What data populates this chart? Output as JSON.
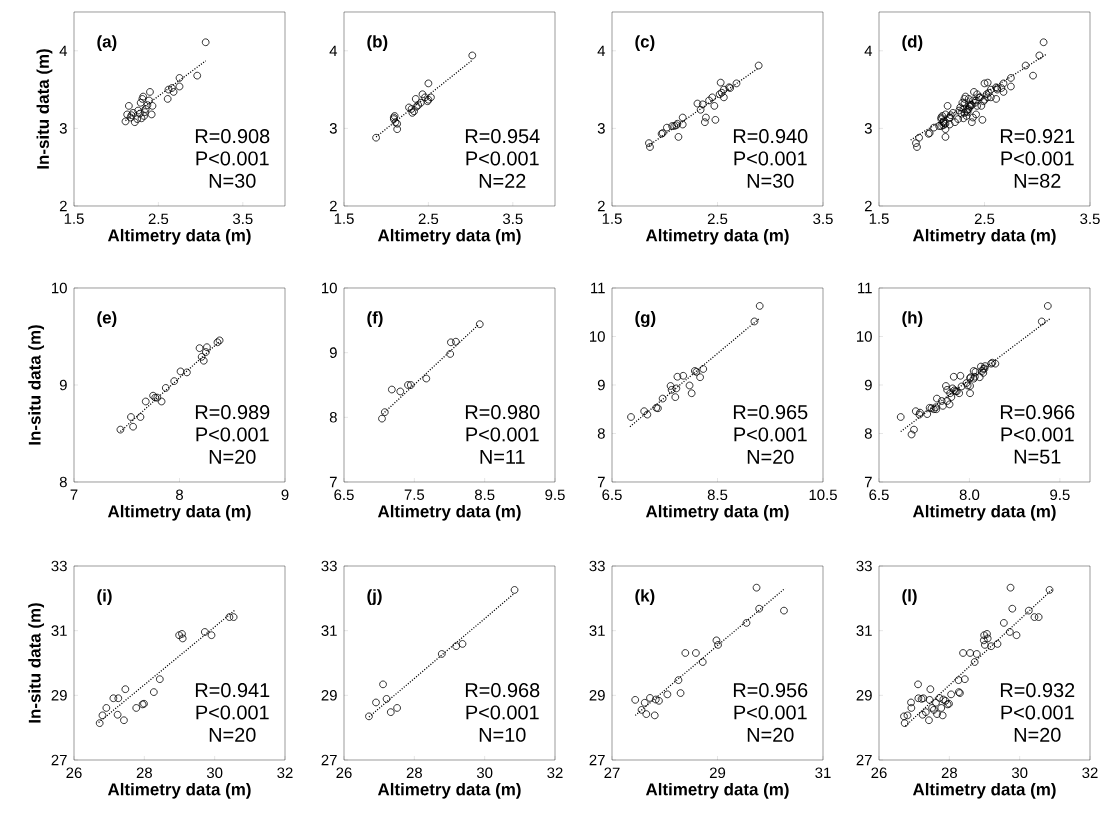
{
  "chart_data": [
    {
      "type": "scatter",
      "xlabel": "Altimetry data (m)",
      "ylabel": "In-situ data (m)",
      "xlim": [
        1.5,
        4.0
      ],
      "ylim": [
        2,
        4.5
      ],
      "xticks": [
        1.5,
        2.5,
        3.5
      ],
      "yticks": [
        2,
        3,
        4
      ],
      "annotations": [
        "(a)",
        "R=0.908",
        "P<0.001",
        "N=30"
      ],
      "series": [
        {
          "marker": "circle",
          "color": "#000000",
          "x": [
            3.06,
            2.96,
            2.75,
            2.75,
            2.68,
            2.66,
            2.62,
            2.61,
            2.4,
            2.32,
            2.39,
            2.43,
            2.29,
            2.35,
            2.42,
            2.28,
            2.15,
            2.13,
            2.18,
            2.11,
            2.22,
            2.3,
            2.26,
            2.33,
            2.2,
            2.37,
            2.25,
            2.31,
            2.17,
            2.34
          ],
          "values": [
            4.11,
            3.68,
            3.65,
            3.54,
            3.47,
            3.52,
            3.5,
            3.38,
            3.47,
            3.41,
            3.36,
            3.29,
            3.33,
            3.25,
            3.18,
            3.19,
            3.29,
            3.18,
            3.17,
            3.09,
            3.08,
            3.13,
            3.23,
            3.16,
            3.2,
            3.3,
            3.12,
            3.38,
            3.14,
            3.21
          ]
        },
        {
          "type": "line",
          "marker": "none",
          "line_style": "dotted",
          "color": "#000000",
          "x": [
            2.11,
            3.06
          ],
          "values": [
            3.1,
            3.87
          ]
        }
      ]
    },
    {
      "type": "scatter",
      "xlabel": "Altimetry data (m)",
      "xlim": [
        1.5,
        4.0
      ],
      "ylim": [
        2,
        4.5
      ],
      "xticks": [
        1.5,
        2.5,
        3.5
      ],
      "yticks": [
        2,
        3,
        4
      ],
      "annotations": [
        "(b)",
        "R=0.954",
        "P<0.001",
        "N=22"
      ],
      "series": [
        {
          "marker": "circle",
          "color": "#000000",
          "x": [
            1.88,
            3.02,
            2.5,
            2.53,
            2.43,
            2.35,
            2.49,
            2.38,
            2.27,
            2.33,
            2.31,
            2.1,
            2.11,
            2.13,
            2.13,
            2.09,
            2.46,
            2.36,
            2.3,
            2.41,
            2.5,
            2.09
          ],
          "values": [
            2.88,
            3.94,
            3.58,
            3.4,
            3.44,
            3.38,
            3.35,
            3.3,
            3.27,
            3.22,
            3.2,
            3.16,
            3.08,
            3.06,
            2.99,
            3.14,
            3.4,
            3.28,
            3.25,
            3.33,
            3.37,
            3.12
          ]
        },
        {
          "type": "line",
          "marker": "none",
          "line_style": "dotted",
          "color": "#000000",
          "x": [
            1.88,
            3.02
          ],
          "values": [
            2.89,
            3.88
          ]
        }
      ]
    },
    {
      "type": "scatter",
      "xlabel": "Altimetry data (m)",
      "xlim": [
        1.5,
        3.5
      ],
      "ylim": [
        2,
        4.5
      ],
      "xticks": [
        1.5,
        2.5,
        3.5
      ],
      "yticks": [
        2,
        3,
        4
      ],
      "annotations": [
        "(c)",
        "R=0.940",
        "P<0.001",
        "N=30"
      ],
      "series": [
        {
          "marker": "circle",
          "color": "#000000",
          "x": [
            1.85,
            1.86,
            1.97,
            2.02,
            2.07,
            2.11,
            2.09,
            2.13,
            2.17,
            2.17,
            2.31,
            2.36,
            2.34,
            2.38,
            2.39,
            2.45,
            2.47,
            2.48,
            2.53,
            2.54,
            2.56,
            2.56,
            2.61,
            2.68,
            2.89,
            2.12,
            2.42,
            2.52,
            2.62,
            1.98
          ],
          "values": [
            2.81,
            2.76,
            2.93,
            3.01,
            3.03,
            3.04,
            3.03,
            2.89,
            3.05,
            3.14,
            3.32,
            3.31,
            3.24,
            3.08,
            3.14,
            3.4,
            3.29,
            3.11,
            3.59,
            3.46,
            3.4,
            3.5,
            3.53,
            3.58,
            3.81,
            3.06,
            3.36,
            3.44,
            3.52,
            2.94
          ]
        },
        {
          "type": "line",
          "marker": "none",
          "line_style": "dotted",
          "color": "#000000",
          "x": [
            1.85,
            2.89
          ],
          "values": [
            2.78,
            3.78
          ]
        }
      ]
    },
    {
      "type": "scatter",
      "xlabel": "Altimetry data (m)",
      "xlim": [
        1.5,
        3.5
      ],
      "ylim": [
        2,
        4.5
      ],
      "xticks": [
        1.5,
        2.5,
        3.5
      ],
      "yticks": [
        2,
        3,
        4
      ],
      "annotations": [
        "(d)",
        "R=0.921",
        "P<0.001",
        "N=82"
      ],
      "series": [
        {
          "marker": "circle",
          "color": "#000000",
          "x": [
            3.06,
            2.96,
            2.75,
            2.75,
            2.68,
            2.66,
            2.62,
            2.61,
            2.4,
            2.32,
            2.39,
            2.43,
            2.29,
            2.35,
            2.42,
            2.28,
            2.15,
            2.13,
            2.18,
            2.11,
            2.22,
            2.3,
            2.26,
            2.33,
            2.2,
            2.37,
            2.25,
            2.31,
            2.17,
            2.34,
            1.88,
            3.02,
            2.5,
            2.53,
            2.43,
            2.35,
            2.49,
            2.38,
            2.27,
            2.33,
            2.31,
            2.1,
            2.11,
            2.13,
            2.13,
            2.09,
            2.46,
            2.36,
            2.3,
            2.41,
            2.5,
            2.09,
            1.85,
            1.86,
            1.97,
            2.02,
            2.07,
            2.11,
            2.09,
            2.13,
            2.17,
            2.17,
            2.31,
            2.36,
            2.34,
            2.38,
            2.39,
            2.45,
            2.47,
            2.48,
            2.53,
            2.54,
            2.56,
            2.56,
            2.61,
            2.68,
            2.89,
            2.12,
            2.42,
            2.52,
            2.62,
            1.98
          ],
          "values": [
            4.11,
            3.68,
            3.65,
            3.54,
            3.47,
            3.52,
            3.5,
            3.38,
            3.47,
            3.41,
            3.36,
            3.29,
            3.33,
            3.25,
            3.18,
            3.19,
            3.29,
            3.18,
            3.17,
            3.09,
            3.08,
            3.13,
            3.23,
            3.16,
            3.2,
            3.3,
            3.12,
            3.38,
            3.14,
            3.21,
            2.88,
            3.94,
            3.58,
            3.4,
            3.44,
            3.38,
            3.35,
            3.3,
            3.27,
            3.22,
            3.2,
            3.16,
            3.08,
            3.06,
            2.99,
            3.14,
            3.4,
            3.28,
            3.25,
            3.33,
            3.37,
            3.12,
            2.81,
            2.76,
            2.93,
            3.01,
            3.03,
            3.04,
            3.03,
            2.89,
            3.05,
            3.14,
            3.32,
            3.31,
            3.24,
            3.08,
            3.14,
            3.4,
            3.29,
            3.11,
            3.59,
            3.46,
            3.4,
            3.5,
            3.53,
            3.58,
            3.81,
            3.06,
            3.36,
            3.44,
            3.52,
            2.94
          ]
        },
        {
          "type": "line",
          "marker": "none",
          "line_style": "dotted",
          "color": "#000000",
          "x": [
            1.8,
            3.08
          ],
          "values": [
            2.85,
            3.95
          ]
        }
      ]
    },
    {
      "type": "scatter",
      "xlabel": "Altimetry data (m)",
      "ylabel": "In-situ data (m)",
      "xlim": [
        7,
        9
      ],
      "ylim": [
        8,
        10
      ],
      "xticks": [
        7,
        8,
        9
      ],
      "yticks": [
        8,
        9,
        10
      ],
      "annotations": [
        "(e)",
        "R=0.989",
        "P<0.001",
        "N=20"
      ],
      "series": [
        {
          "marker": "circle",
          "color": "#000000",
          "x": [
            7.44,
            7.54,
            7.56,
            7.63,
            7.68,
            7.75,
            7.77,
            7.79,
            7.83,
            7.87,
            7.95,
            8.01,
            8.07,
            8.19,
            8.21,
            8.23,
            8.25,
            8.26,
            8.36,
            8.38
          ],
          "values": [
            8.54,
            8.67,
            8.57,
            8.67,
            8.83,
            8.89,
            8.87,
            8.87,
            8.83,
            8.97,
            9.04,
            9.14,
            9.13,
            9.38,
            9.29,
            9.25,
            9.34,
            9.39,
            9.44,
            9.46
          ]
        },
        {
          "type": "line",
          "marker": "none",
          "line_style": "dotted",
          "color": "#000000",
          "x": [
            7.44,
            8.38
          ],
          "values": [
            8.52,
            9.45
          ]
        }
      ]
    },
    {
      "type": "scatter",
      "xlabel": "Altimetry data (m)",
      "xlim": [
        6.5,
        9.5
      ],
      "ylim": [
        7,
        10
      ],
      "xticks": [
        6.5,
        7.5,
        8.5,
        9.5
      ],
      "yticks": [
        7,
        8,
        9,
        10
      ],
      "annotations": [
        "(f)",
        "R=0.980",
        "P<0.001",
        "N=11"
      ],
      "series": [
        {
          "marker": "circle",
          "color": "#000000",
          "x": [
            7.04,
            7.08,
            7.18,
            7.3,
            7.41,
            7.45,
            7.67,
            8.01,
            8.02,
            8.09,
            8.43
          ],
          "values": [
            7.98,
            8.08,
            8.43,
            8.4,
            8.5,
            8.5,
            8.6,
            8.98,
            9.16,
            9.17,
            9.44
          ]
        },
        {
          "type": "line",
          "marker": "none",
          "line_style": "dotted",
          "color": "#000000",
          "x": [
            7.05,
            8.42
          ],
          "values": [
            8.05,
            9.44
          ]
        }
      ]
    },
    {
      "type": "scatter",
      "xlabel": "Altimetry data (m)",
      "xlim": [
        6.5,
        10.5
      ],
      "ylim": [
        7,
        11
      ],
      "xticks": [
        6.5,
        8.5,
        10.5
      ],
      "yticks": [
        7,
        8,
        9,
        10,
        11
      ],
      "annotations": [
        "(g)",
        "R=0.965",
        "P<0.001",
        "N=20"
      ],
      "series": [
        {
          "marker": "circle",
          "color": "#000000",
          "x": [
            6.86,
            7.11,
            7.17,
            7.34,
            7.37,
            7.46,
            7.61,
            7.7,
            7.72,
            7.74,
            7.85,
            7.97,
            8.01,
            8.07,
            8.17,
            8.23,
            9.2,
            9.3,
            7.63,
            8.1
          ],
          "values": [
            8.34,
            8.46,
            8.39,
            8.53,
            8.52,
            8.72,
            8.98,
            8.75,
            8.93,
            9.17,
            9.19,
            8.99,
            8.83,
            9.29,
            9.16,
            9.33,
            10.31,
            10.63,
            8.9,
            9.27
          ]
        },
        {
          "type": "line",
          "marker": "none",
          "line_style": "dotted",
          "color": "#000000",
          "x": [
            6.84,
            9.28
          ],
          "values": [
            8.14,
            10.36
          ]
        }
      ]
    },
    {
      "type": "scatter",
      "xlabel": "Altimetry data (m)",
      "xlim": [
        6.5,
        10.0
      ],
      "ylim": [
        7,
        11
      ],
      "xticks": [
        6.5,
        {
          "value": 8.0,
          "label": "8.0"
        },
        9.5
      ],
      "yticks": [
        7,
        8,
        9,
        10,
        11
      ],
      "annotations": [
        "(h)",
        "R=0.966",
        "P<0.001",
        "N=51"
      ],
      "series": [
        {
          "marker": "circle",
          "color": "#000000",
          "x": [
            7.44,
            7.54,
            7.56,
            7.63,
            7.68,
            7.75,
            7.77,
            7.79,
            7.83,
            7.87,
            7.95,
            8.01,
            8.07,
            8.19,
            8.21,
            8.23,
            8.25,
            8.26,
            8.36,
            8.38,
            7.04,
            7.08,
            7.18,
            7.3,
            7.41,
            7.45,
            7.67,
            8.01,
            8.02,
            8.09,
            8.43,
            6.86,
            7.11,
            7.17,
            7.34,
            7.37,
            7.46,
            7.61,
            7.7,
            7.72,
            7.74,
            7.85,
            7.97,
            8.01,
            8.07,
            8.17,
            8.23,
            9.2,
            9.3,
            7.63,
            8.1
          ],
          "values": [
            8.54,
            8.67,
            8.57,
            8.67,
            8.83,
            8.89,
            8.87,
            8.87,
            8.83,
            8.97,
            9.04,
            9.14,
            9.13,
            9.38,
            9.29,
            9.25,
            9.34,
            9.39,
            9.44,
            9.46,
            7.98,
            8.08,
            8.43,
            8.4,
            8.5,
            8.5,
            8.6,
            8.98,
            9.16,
            9.17,
            9.44,
            8.34,
            8.46,
            8.39,
            8.53,
            8.52,
            8.72,
            8.98,
            8.75,
            8.93,
            9.17,
            9.19,
            8.99,
            8.83,
            9.29,
            9.16,
            9.33,
            10.31,
            10.63,
            8.9,
            9.27
          ]
        },
        {
          "type": "line",
          "marker": "none",
          "line_style": "dotted",
          "color": "#000000",
          "x": [
            6.86,
            9.34
          ],
          "values": [
            8.04,
            10.37
          ]
        }
      ]
    },
    {
      "type": "scatter",
      "xlabel": "Altimetry data (m)",
      "ylabel": "In-situ data (m)",
      "xlim": [
        26,
        32
      ],
      "ylim": [
        27,
        33
      ],
      "xticks": [
        26,
        28,
        30,
        32
      ],
      "yticks": [
        27,
        29,
        31,
        33
      ],
      "annotations": [
        "(i)",
        "R=0.941",
        "P<0.001",
        "N=20"
      ],
      "series": [
        {
          "marker": "circle",
          "color": "#000000",
          "x": [
            26.73,
            26.81,
            26.92,
            27.12,
            27.26,
            27.24,
            27.42,
            27.46,
            27.77,
            27.95,
            27.99,
            28.27,
            28.44,
            28.99,
            29.07,
            29.09,
            29.72,
            29.91,
            30.42,
            30.54
          ],
          "values": [
            28.14,
            28.38,
            28.61,
            28.91,
            28.91,
            28.4,
            28.23,
            29.19,
            28.61,
            28.72,
            28.74,
            29.1,
            29.5,
            30.86,
            30.9,
            30.76,
            30.96,
            30.86,
            31.42,
            31.42
          ]
        },
        {
          "type": "line",
          "marker": "none",
          "line_style": "dotted",
          "color": "#000000",
          "x": [
            26.7,
            30.57
          ],
          "values": [
            28.16,
            31.63
          ]
        }
      ]
    },
    {
      "type": "scatter",
      "xlabel": "Altimetry data (m)",
      "xlim": [
        26,
        32
      ],
      "ylim": [
        27,
        33
      ],
      "xticks": [
        26,
        28,
        30,
        32
      ],
      "yticks": [
        27,
        29,
        31,
        33
      ],
      "annotations": [
        "(j)",
        "R=0.968",
        "P<0.001",
        "N=10"
      ],
      "series": [
        {
          "marker": "circle",
          "color": "#000000",
          "x": [
            26.71,
            26.91,
            27.11,
            27.21,
            27.33,
            27.51,
            28.78,
            29.19,
            29.37,
            30.85
          ],
          "values": [
            28.35,
            28.78,
            29.34,
            28.89,
            28.48,
            28.61,
            30.28,
            30.52,
            30.59,
            32.26
          ]
        },
        {
          "type": "line",
          "marker": "none",
          "line_style": "dotted",
          "color": "#000000",
          "x": [
            26.71,
            30.85
          ],
          "values": [
            28.33,
            32.16
          ]
        }
      ]
    },
    {
      "type": "scatter",
      "xlabel": "Altimetry data (m)",
      "xlim": [
        27,
        31
      ],
      "ylim": [
        27,
        33
      ],
      "xticks": [
        27,
        29,
        31
      ],
      "yticks": [
        27,
        29,
        31,
        33
      ],
      "annotations": [
        "(k)",
        "R=0.956",
        "P<0.001",
        "N=20"
      ],
      "series": [
        {
          "marker": "circle",
          "color": "#000000",
          "x": [
            27.44,
            27.56,
            27.62,
            27.65,
            27.72,
            27.81,
            27.83,
            27.89,
            28.05,
            28.26,
            28.3,
            28.39,
            28.59,
            28.72,
            28.98,
            29.01,
            29.55,
            29.74,
            29.79,
            30.26
          ],
          "values": [
            28.86,
            28.55,
            28.77,
            28.42,
            28.92,
            28.38,
            28.87,
            28.83,
            29.03,
            29.47,
            29.07,
            30.31,
            30.31,
            30.03,
            30.7,
            30.56,
            31.24,
            32.33,
            31.68,
            31.62
          ]
        },
        {
          "type": "line",
          "marker": "none",
          "line_style": "dotted",
          "color": "#000000",
          "x": [
            27.44,
            30.28
          ],
          "values": [
            28.38,
            32.31
          ]
        }
      ]
    },
    {
      "type": "scatter",
      "xlabel": "Altimetry data (m)",
      "xlim": [
        26,
        32
      ],
      "ylim": [
        27,
        33
      ],
      "xticks": [
        26,
        28,
        30,
        32
      ],
      "yticks": [
        27,
        29,
        31,
        33
      ],
      "annotations": [
        "(l)",
        "R=0.932",
        "P<0.001",
        "N=20"
      ],
      "series": [
        {
          "marker": "circle",
          "color": "#000000",
          "x": [
            26.73,
            26.81,
            26.92,
            27.12,
            27.26,
            27.24,
            27.42,
            27.46,
            27.77,
            27.95,
            27.99,
            28.27,
            28.44,
            28.99,
            29.07,
            29.09,
            29.72,
            29.91,
            30.42,
            30.54,
            26.71,
            26.91,
            27.11,
            27.21,
            27.33,
            27.51,
            28.78,
            29.19,
            29.37,
            30.85,
            27.44,
            27.56,
            27.62,
            27.65,
            27.72,
            27.81,
            27.83,
            27.89,
            28.05,
            28.26,
            28.3,
            28.39,
            28.59,
            28.72,
            28.98,
            29.01,
            29.55,
            29.74,
            29.79,
            30.26
          ],
          "values": [
            28.14,
            28.38,
            28.61,
            28.91,
            28.91,
            28.4,
            28.23,
            29.19,
            28.61,
            28.72,
            28.74,
            29.1,
            29.5,
            30.86,
            30.9,
            30.76,
            30.96,
            30.86,
            31.42,
            31.42,
            28.35,
            28.78,
            29.34,
            28.89,
            28.48,
            28.61,
            30.28,
            30.52,
            30.59,
            32.26,
            28.86,
            28.55,
            28.77,
            28.42,
            28.92,
            28.38,
            28.87,
            28.83,
            29.03,
            29.47,
            29.07,
            30.31,
            30.31,
            30.03,
            30.7,
            30.56,
            31.24,
            32.33,
            31.68,
            31.62
          ]
        },
        {
          "type": "line",
          "marker": "none",
          "line_style": "dotted",
          "color": "#000000",
          "x": [
            26.75,
            30.95
          ],
          "values": [
            28.05,
            32.3
          ]
        }
      ]
    }
  ]
}
